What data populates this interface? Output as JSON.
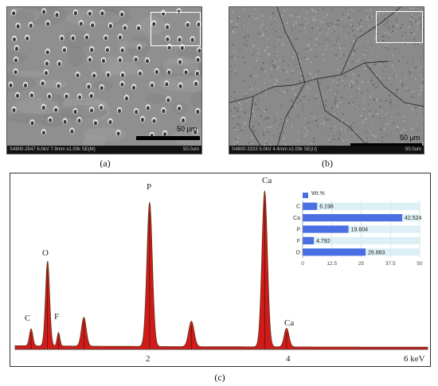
{
  "panels": {
    "a": {
      "label": "(a)",
      "scale_text": "50 µm",
      "footer_left": "S4800-2547 6.0kV 7.9mm x1.00k SE(M)",
      "footer_right": "50.0um"
    },
    "b": {
      "label": "(b)",
      "scale_text": "50 µm",
      "footer_left": "S4800-3333 5.0kV 4.4mm x1.00k SE(U)",
      "footer_right": "50.0um"
    },
    "c": {
      "label": "(c)"
    }
  },
  "eds": {
    "peaks": [
      "C",
      "O",
      "F",
      "P",
      "Ca",
      "Ca"
    ],
    "x_ticks": [
      "2",
      "4"
    ],
    "x_unit": "6 keV"
  },
  "chart_data": {
    "type": "bar",
    "orientation": "horizontal",
    "legend": "Wt.%",
    "legend_position": "top",
    "categories": [
      "C",
      "Ca",
      "P",
      "F",
      "O"
    ],
    "values": [
      6.198,
      42.524,
      19.604,
      4.792,
      26.883
    ],
    "value_labels": [
      "6.198",
      "42.524",
      "19.604",
      "4.792",
      "26.883"
    ],
    "xlim": [
      0,
      50
    ],
    "x_ticks": [
      "0",
      "12.5",
      "25",
      "37.5",
      "50"
    ],
    "bar_color": "#4a6fe3",
    "grid": true
  },
  "colors": {
    "spectrum_fill": "#d11a1a",
    "spectrum_outline": "#5a3a1a",
    "bar": "#4a6fe3"
  }
}
